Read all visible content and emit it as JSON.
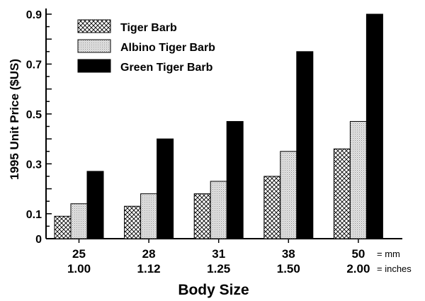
{
  "chart_data": {
    "type": "bar",
    "title": "",
    "xlabel": "Body Size",
    "ylabel": "1995 Unit Price ($US)",
    "ylim": [
      0,
      0.9
    ],
    "yticks": [
      {
        "value": 0,
        "label": "0"
      },
      {
        "value": 0.1,
        "label": "0.1"
      },
      {
        "value": 0.3,
        "label": "0.3"
      },
      {
        "value": 0.5,
        "label": "0.5"
      },
      {
        "value": 0.7,
        "label": "0.7"
      },
      {
        "value": 0.9,
        "label": "0.9"
      }
    ],
    "categories": [
      {
        "mm": "25",
        "inches": "1.00"
      },
      {
        "mm": "28",
        "inches": "1.12"
      },
      {
        "mm": "31",
        "inches": "1.25"
      },
      {
        "mm": "38",
        "inches": "1.50"
      },
      {
        "mm": "50",
        "inches": "2.00"
      }
    ],
    "unit_labels": {
      "mm": "= mm",
      "inches": "= inches"
    },
    "series": [
      {
        "name": "Tiger Barb",
        "pattern": "crosshatch",
        "values": [
          0.09,
          0.13,
          0.18,
          0.25,
          0.36
        ]
      },
      {
        "name": "Albino Tiger Barb",
        "pattern": "stipple",
        "values": [
          0.14,
          0.18,
          0.23,
          0.35,
          0.47
        ]
      },
      {
        "name": "Green Tiger Barb",
        "pattern": "solid",
        "color": "#000000",
        "values": [
          0.27,
          0.4,
          0.47,
          0.75,
          0.9
        ]
      }
    ],
    "grid": false,
    "legend": "top-left"
  }
}
